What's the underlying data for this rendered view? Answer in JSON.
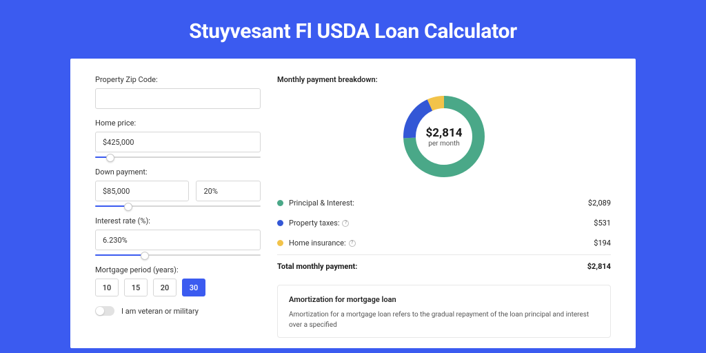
{
  "page": {
    "title": "Stuyvesant Fl USDA Loan Calculator",
    "background_color": "#3b5bf0",
    "card_bg": "#ffffff"
  },
  "form": {
    "zip": {
      "label": "Property Zip Code:",
      "value": ""
    },
    "home_price": {
      "label": "Home price:",
      "value": "$425,000",
      "slider_pct": 9
    },
    "down_payment": {
      "label": "Down payment:",
      "amount": "$85,000",
      "percent": "20%",
      "slider_pct": 20
    },
    "interest": {
      "label": "Interest rate (%):",
      "value": "6.230%",
      "slider_pct": 30
    },
    "period": {
      "label": "Mortgage period (years):",
      "options": [
        "10",
        "15",
        "20",
        "30"
      ],
      "active": "30"
    },
    "veteran": {
      "label": "I am veteran or military",
      "on": false
    }
  },
  "breakdown": {
    "title": "Monthly payment breakdown:",
    "center_value": "$2,814",
    "center_sub": "per month",
    "donut": {
      "radius": 50,
      "stroke_width": 18,
      "bg": "#ffffff",
      "segments": [
        {
          "name": "principal-interest",
          "color": "#4aa888",
          "value": 2089
        },
        {
          "name": "property-taxes",
          "color": "#3357d6",
          "value": 531
        },
        {
          "name": "home-insurance",
          "color": "#f2c34a",
          "value": 194
        }
      ]
    },
    "rows": [
      {
        "label": "Principal & Interest:",
        "value": "$2,089",
        "color": "#4aa888",
        "info": false
      },
      {
        "label": "Property taxes:",
        "value": "$531",
        "color": "#3357d6",
        "info": true
      },
      {
        "label": "Home insurance:",
        "value": "$194",
        "color": "#f2c34a",
        "info": true
      }
    ],
    "total": {
      "label": "Total monthly payment:",
      "value": "$2,814"
    }
  },
  "amortization": {
    "title": "Amortization for mortgage loan",
    "body": "Amortization for a mortgage loan refers to the gradual repayment of the loan principal and interest over a specified"
  }
}
